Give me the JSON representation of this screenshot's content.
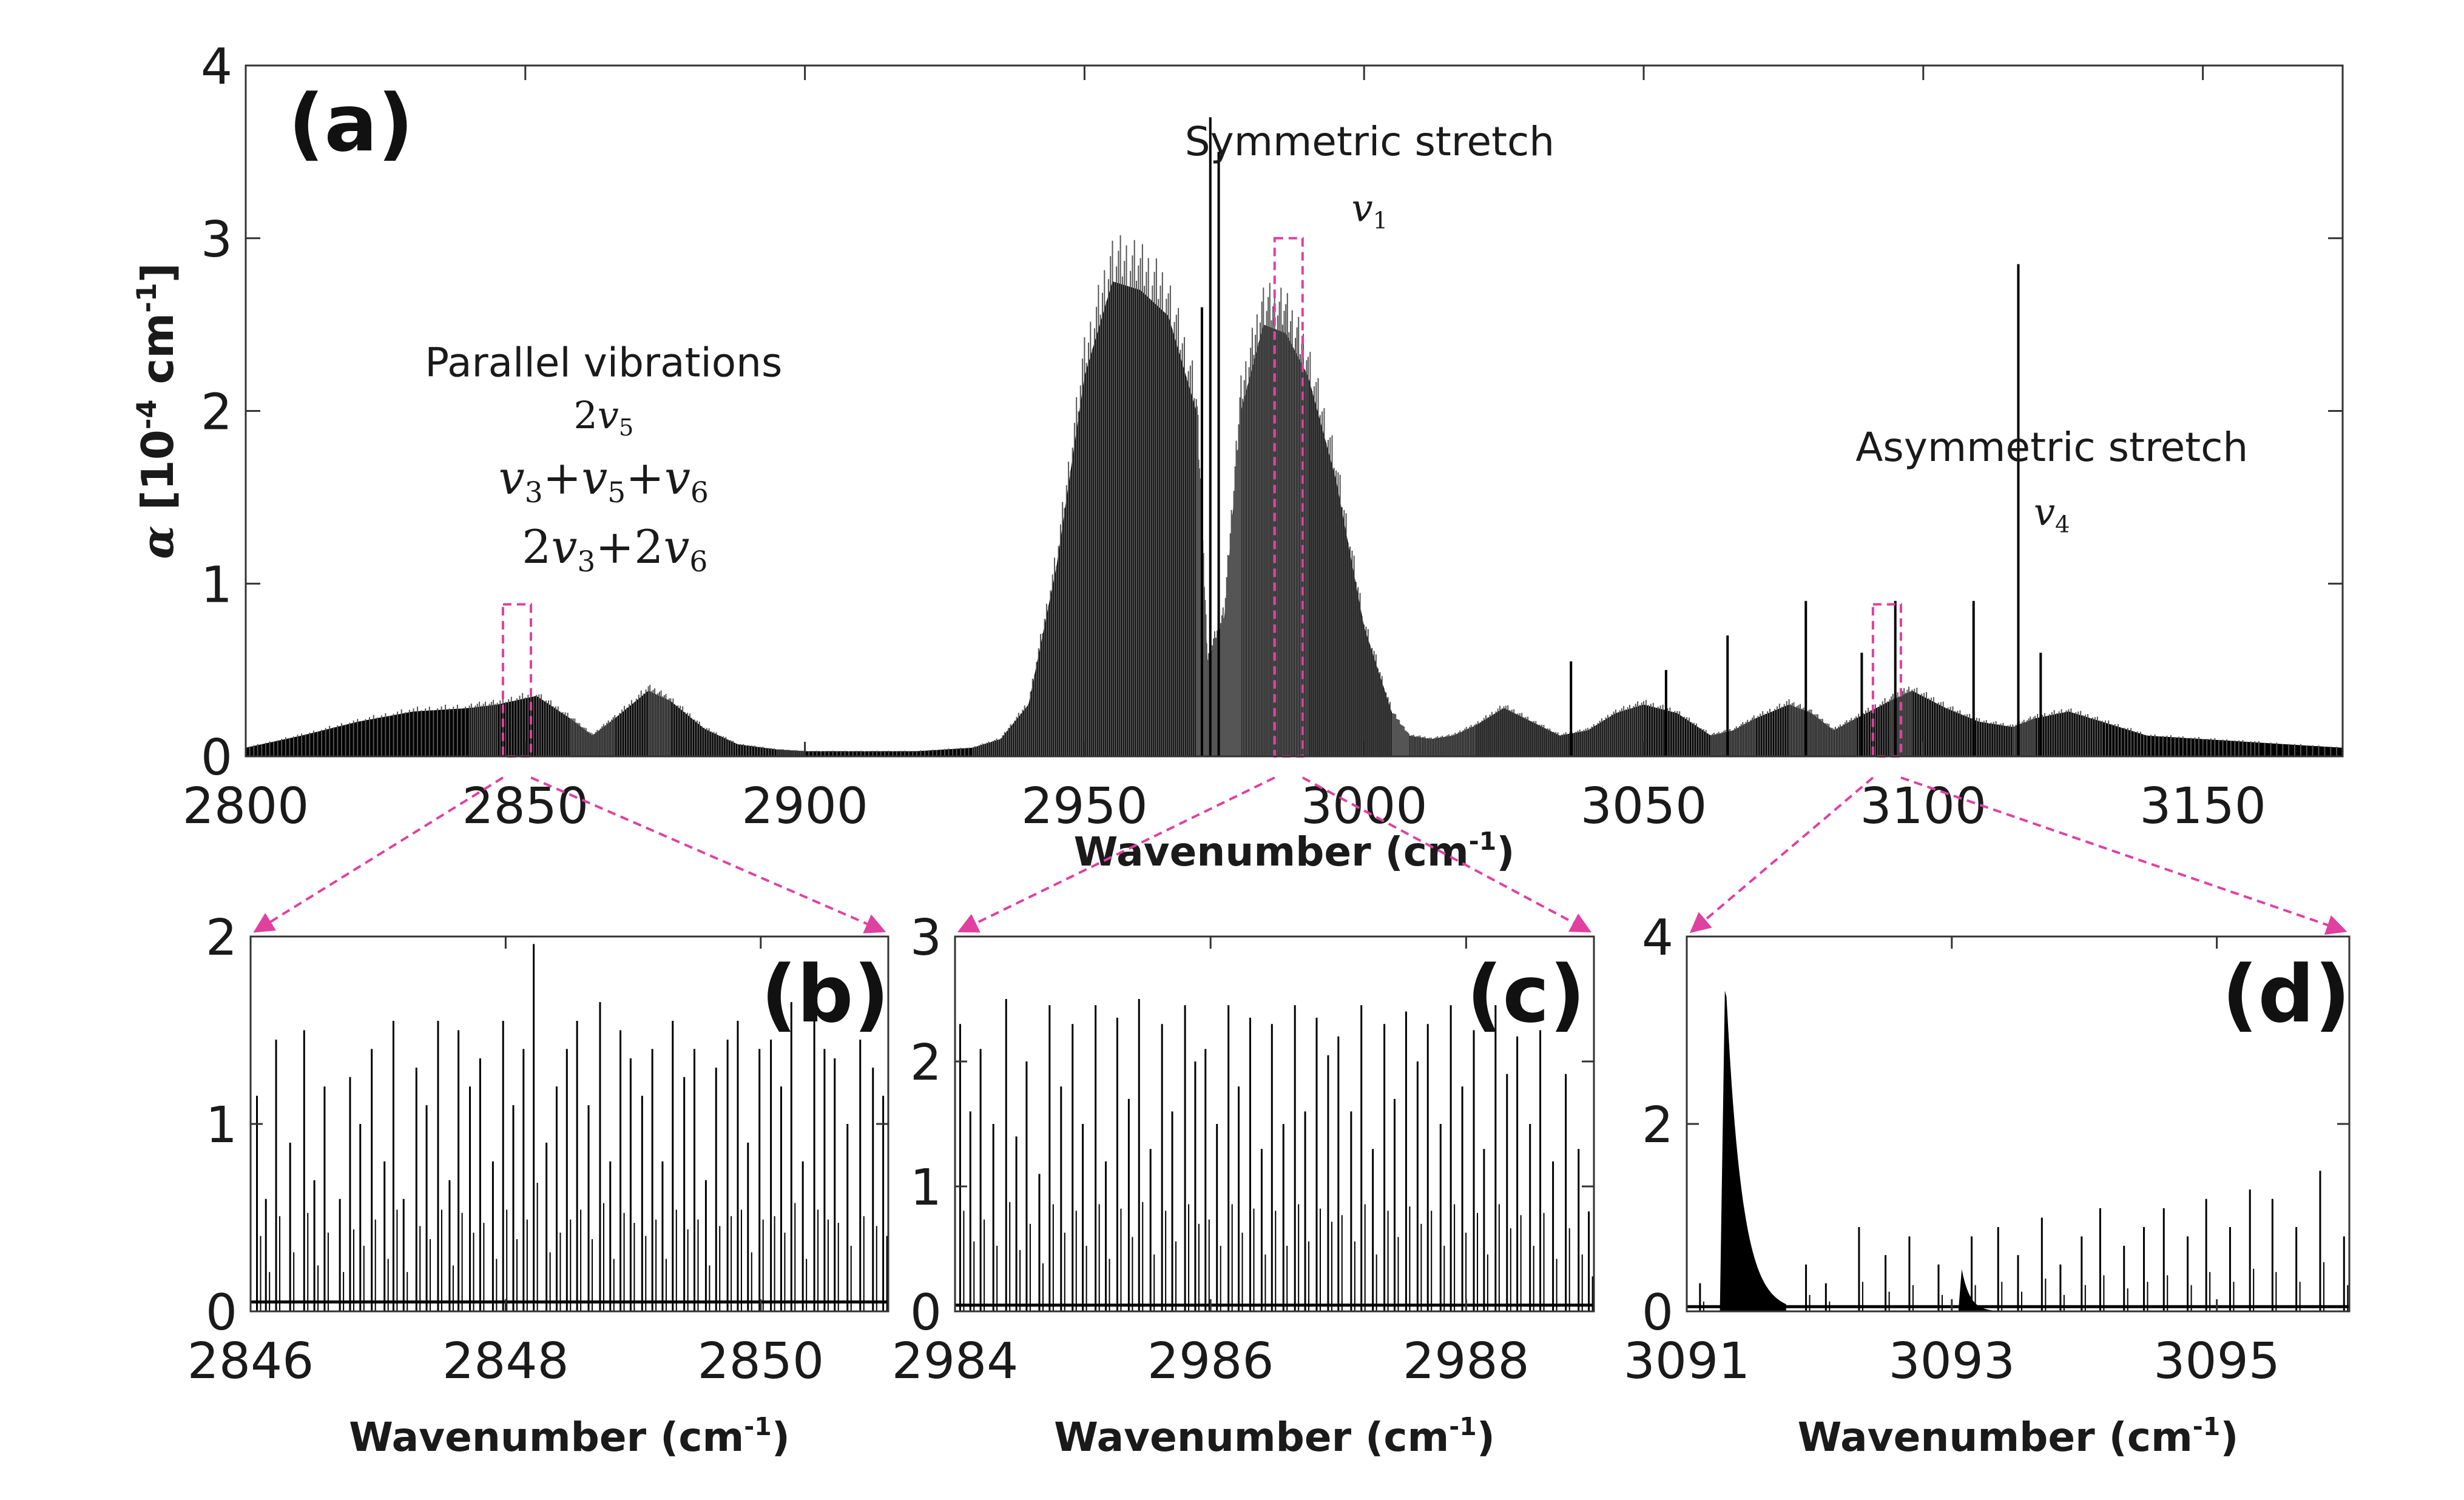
{
  "colors": {
    "trace": "#000000",
    "highlight": "#e040a0",
    "frame": "#333333"
  },
  "chart_data": [
    {
      "panel_label": "(a)",
      "type": "line",
      "xlabel": "Wavenumber (cm",
      "xlabel_sup": "-1",
      "xlabel_close": ")",
      "ylabel_alpha": "α",
      "ylabel_pre": " [10",
      "ylabel_sup1": "-4",
      "ylabel_mid": " cm",
      "ylabel_sup2": "-1",
      "ylabel_post": "]",
      "xlim": [
        2800,
        3175
      ],
      "ylim": [
        0,
        4
      ],
      "xticks": [
        2800,
        2850,
        2900,
        2950,
        3000,
        3050,
        3100,
        3150
      ],
      "yticks": [
        0,
        1,
        2,
        3,
        4
      ],
      "envelope": {
        "x": [
          2800,
          2810,
          2820,
          2830,
          2840,
          2845,
          2852,
          2858,
          2862,
          2866,
          2872,
          2876,
          2882,
          2888,
          2895,
          2900,
          2910,
          2920,
          2930,
          2935,
          2940,
          2945,
          2950,
          2955,
          2960,
          2965,
          2970,
          2972,
          2975,
          2978,
          2982,
          2986,
          2990,
          2995,
          3000,
          3005,
          3008,
          3012,
          3016,
          3020,
          3025,
          3030,
          3035,
          3040,
          3045,
          3050,
          3056,
          3062,
          3066,
          3070,
          3076,
          3080,
          3084,
          3088,
          3094,
          3098,
          3104,
          3110,
          3116,
          3120,
          3126,
          3132,
          3140,
          3150,
          3160,
          3175
        ],
        "y": [
          0.05,
          0.12,
          0.2,
          0.26,
          0.28,
          0.3,
          0.35,
          0.22,
          0.12,
          0.22,
          0.38,
          0.32,
          0.16,
          0.07,
          0.04,
          0.03,
          0.03,
          0.03,
          0.05,
          0.1,
          0.3,
          1.1,
          2.2,
          2.75,
          2.7,
          2.55,
          2.0,
          0.55,
          0.8,
          2.0,
          2.5,
          2.45,
          2.2,
          1.6,
          0.75,
          0.25,
          0.12,
          0.1,
          0.12,
          0.18,
          0.28,
          0.2,
          0.12,
          0.15,
          0.25,
          0.3,
          0.25,
          0.12,
          0.15,
          0.22,
          0.3,
          0.25,
          0.15,
          0.22,
          0.32,
          0.38,
          0.28,
          0.2,
          0.17,
          0.22,
          0.26,
          0.2,
          0.12,
          0.1,
          0.08,
          0.05
        ]
      },
      "lines": [
        {
          "x": 2972.5,
          "y": 3.7
        },
        {
          "x": 2974,
          "y": 3.5
        },
        {
          "x": 2971,
          "y": 2.6
        },
        {
          "x": 3117,
          "y": 2.85
        },
        {
          "x": 3079,
          "y": 0.9
        },
        {
          "x": 3095,
          "y": 0.9
        },
        {
          "x": 3109,
          "y": 0.9
        },
        {
          "x": 3065,
          "y": 0.7
        },
        {
          "x": 3037,
          "y": 0.55
        },
        {
          "x": 3054,
          "y": 0.5
        },
        {
          "x": 3089,
          "y": 0.6
        },
        {
          "x": 3121,
          "y": 0.6
        }
      ],
      "zoom_boxes": [
        {
          "x0": 2846,
          "x1": 2851,
          "ymax": 0.88
        },
        {
          "x0": 2984,
          "x1": 2989,
          "ymax": 3.0
        },
        {
          "x0": 3091,
          "x1": 3096,
          "ymax": 0.88
        }
      ],
      "annotations": [
        {
          "text": "Parallel vibrations",
          "x": 2864,
          "y": 2.2
        },
        {
          "text": "Symmetric stretch",
          "x": 3001,
          "y": 3.48
        },
        {
          "text": "Asymmetric stretch",
          "x": 3123,
          "y": 1.71
        }
      ],
      "math_labels": {
        "parallel_1_coef": "2",
        "parallel_1_v": "v",
        "parallel_1_sub": "5",
        "parallel_2_a": "v",
        "parallel_2_a_sub": "3",
        "parallel_2_p1": "+",
        "parallel_2_b": "v",
        "parallel_2_b_sub": "5",
        "parallel_2_p2": "+",
        "parallel_2_c": "v",
        "parallel_2_c_sub": "6",
        "parallel_3_c1": "2",
        "parallel_3_a": "v",
        "parallel_3_a_sub": "3",
        "parallel_3_p": "+2",
        "parallel_3_b": "v",
        "parallel_3_b_sub": "6",
        "sym_v": "v",
        "sym_sub": "1",
        "asym_v": "v",
        "asym_sub": "4"
      }
    },
    {
      "panel_label": "(b)",
      "type": "line",
      "xlabel": "Wavenumber (cm",
      "xlabel_sup": "-1",
      "xlabel_close": ")",
      "xlim": [
        2846,
        2851
      ],
      "ylim": [
        0,
        2
      ],
      "xticks": [
        2846,
        2848,
        2850
      ],
      "yticks": [
        0,
        1,
        2
      ],
      "baseline": 0.05,
      "lines_x": [
        2846.05,
        2846.12,
        2846.2,
        2846.31,
        2846.42,
        2846.5,
        2846.58,
        2846.7,
        2846.78,
        2846.86,
        2846.95,
        2847.05,
        2847.12,
        2847.2,
        2847.3,
        2847.38,
        2847.47,
        2847.56,
        2847.63,
        2847.72,
        2847.8,
        2847.9,
        2847.98,
        2848.06,
        2848.14,
        2848.22,
        2848.32,
        2848.4,
        2848.48,
        2848.56,
        2848.65,
        2848.74,
        2848.82,
        2848.9,
        2848.98,
        2849.07,
        2849.15,
        2849.23,
        2849.31,
        2849.4,
        2849.48,
        2849.57,
        2849.65,
        2849.74,
        2849.82,
        2849.9,
        2849.99,
        2850.08,
        2850.16,
        2850.24,
        2850.33,
        2850.42,
        2850.5,
        2850.58,
        2850.68,
        2850.78,
        2850.88,
        2850.96
      ],
      "lines_y": [
        1.15,
        0.6,
        1.45,
        0.9,
        1.5,
        0.7,
        1.2,
        0.6,
        1.25,
        1.0,
        1.4,
        0.8,
        1.55,
        0.6,
        1.3,
        1.1,
        1.55,
        0.7,
        1.5,
        1.2,
        1.35,
        0.8,
        1.55,
        1.1,
        1.4,
        1.96,
        0.9,
        1.2,
        1.4,
        1.55,
        1.1,
        1.65,
        0.8,
        1.5,
        1.35,
        1.15,
        1.4,
        0.8,
        1.55,
        1.25,
        1.4,
        0.7,
        1.3,
        1.45,
        1.55,
        0.9,
        1.4,
        1.45,
        1.2,
        1.65,
        0.8,
        1.55,
        1.4,
        1.35,
        1.0,
        1.45,
        1.3,
        1.15
      ]
    },
    {
      "panel_label": "(c)",
      "type": "line",
      "xlabel": "Wavenumber (cm",
      "xlabel_sup": "-1",
      "xlabel_close": ")",
      "xlim": [
        2984,
        2989
      ],
      "ylim": [
        0,
        3
      ],
      "xticks": [
        2984,
        2986,
        2988
      ],
      "yticks": [
        0,
        1,
        2,
        3
      ],
      "baseline": 0.05,
      "lines_x": [
        2984.04,
        2984.12,
        2984.2,
        2984.3,
        2984.4,
        2984.48,
        2984.56,
        2984.66,
        2984.74,
        2984.83,
        2984.92,
        2985.0,
        2985.1,
        2985.18,
        2985.27,
        2985.36,
        2985.44,
        2985.53,
        2985.62,
        2985.7,
        2985.8,
        2985.88,
        2985.96,
        2986.05,
        2986.14,
        2986.22,
        2986.31,
        2986.4,
        2986.48,
        2986.57,
        2986.66,
        2986.74,
        2986.83,
        2986.92,
        2987.0,
        2987.1,
        2987.18,
        2987.27,
        2987.36,
        2987.44,
        2987.53,
        2987.62,
        2987.7,
        2987.8,
        2987.88,
        2987.97,
        2988.06,
        2988.14,
        2988.23,
        2988.32,
        2988.4,
        2988.5,
        2988.58,
        2988.68,
        2988.78,
        2988.88,
        2988.96
      ],
      "lines_y": [
        2.3,
        1.6,
        2.1,
        1.5,
        2.5,
        1.4,
        2.0,
        1.1,
        2.45,
        1.8,
        2.3,
        1.5,
        2.45,
        1.2,
        2.35,
        1.7,
        2.5,
        1.3,
        2.3,
        1.6,
        2.45,
        2.0,
        2.1,
        1.5,
        2.45,
        1.8,
        2.35,
        1.3,
        2.3,
        1.5,
        2.45,
        1.6,
        2.35,
        2.05,
        2.2,
        1.6,
        2.45,
        1.3,
        2.3,
        1.7,
        2.4,
        2.0,
        2.3,
        1.5,
        2.45,
        1.8,
        2.25,
        1.3,
        2.45,
        1.9,
        2.2,
        1.5,
        2.25,
        1.2,
        1.9,
        1.3,
        0.8
      ]
    },
    {
      "panel_label": "(d)",
      "type": "line",
      "xlabel": "Wavenumber (cm",
      "xlabel_sup": "-1",
      "xlabel_close": ")",
      "xlim": [
        3091,
        3096
      ],
      "ylim": [
        0,
        4
      ],
      "xticks": [
        3091,
        3093,
        3095
      ],
      "yticks": [
        0,
        2,
        4
      ],
      "baseline": 0.05,
      "band": {
        "x0": 3091.25,
        "x1": 3091.75,
        "peak": 3.65
      },
      "band_small": {
        "x0": 3093.05,
        "x1": 3093.3,
        "peak": 0.45
      },
      "lines_x": [
        3091.1,
        3091.9,
        3092.05,
        3092.3,
        3092.5,
        3092.68,
        3092.9,
        3093.15,
        3093.35,
        3093.5,
        3093.68,
        3093.82,
        3093.98,
        3094.12,
        3094.3,
        3094.45,
        3094.6,
        3094.78,
        3094.92,
        3095.1,
        3095.25,
        3095.42,
        3095.6,
        3095.78,
        3095.96
      ],
      "lines_y": [
        0.3,
        0.5,
        0.3,
        0.9,
        0.6,
        0.8,
        0.5,
        0.8,
        0.9,
        0.6,
        1.0,
        0.5,
        0.8,
        1.1,
        0.7,
        0.9,
        1.1,
        0.8,
        1.2,
        0.9,
        1.3,
        1.2,
        0.9,
        1.5,
        0.8
      ]
    }
  ]
}
